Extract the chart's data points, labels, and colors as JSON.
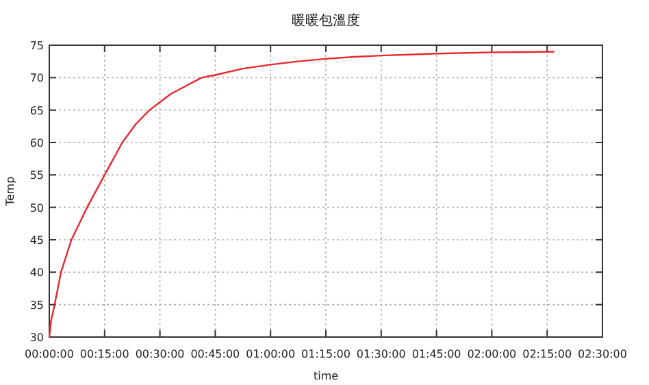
{
  "chart_data": {
    "type": "line",
    "title": "暖暖包溫度",
    "xlabel": "time",
    "ylabel": "Temp",
    "x": [
      0,
      0.008,
      0.024,
      0.053,
      0.1,
      0.171,
      0.25,
      0.33,
      0.39,
      0.453,
      0.55,
      0.688,
      0.75,
      0.875,
      1,
      1.125,
      1.25,
      1.375,
      1.5,
      1.75,
      2,
      2.28
    ],
    "series": [
      {
        "color": "#e8262b",
        "values": [
          30,
          32.5,
          35,
          40,
          45,
          50,
          55,
          60,
          62.8,
          65,
          67.5,
          70,
          70.4,
          71.4,
          72,
          72.5,
          72.9,
          73.2,
          73.4,
          73.7,
          73.9,
          74
        ]
      }
    ],
    "xlim": [
      0,
      2.5
    ],
    "ylim": [
      30,
      75
    ],
    "xticks": [
      {
        "value": 0,
        "label": "00:00:00"
      },
      {
        "value": 0.25,
        "label": "00:15:00"
      },
      {
        "value": 0.5,
        "label": "00:30:00"
      },
      {
        "value": 0.75,
        "label": "00:45:00"
      },
      {
        "value": 1,
        "label": "01:00:00"
      },
      {
        "value": 1.25,
        "label": "01:15:00"
      },
      {
        "value": 1.5,
        "label": "01:30:00"
      },
      {
        "value": 1.75,
        "label": "01:45:00"
      },
      {
        "value": 2,
        "label": "02:00:00"
      },
      {
        "value": 2.25,
        "label": "02:15:00"
      },
      {
        "value": 2.5,
        "label": "02:30:00"
      }
    ],
    "yticks": [
      30,
      35,
      40,
      45,
      50,
      55,
      60,
      65,
      70,
      75
    ],
    "grid": true,
    "line_style": "solid",
    "marker": "none"
  }
}
